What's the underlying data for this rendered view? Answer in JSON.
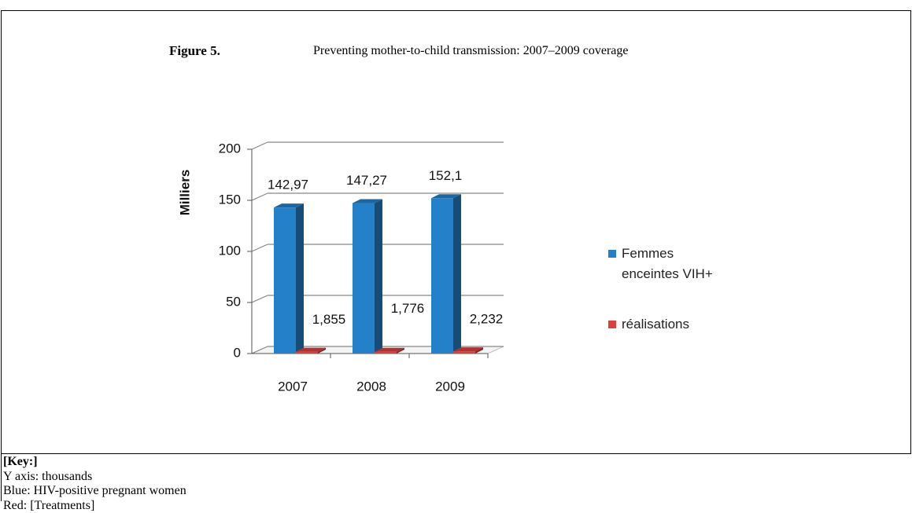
{
  "figure_label": "Figure 5.",
  "figure_caption": "Preventing mother-to-child transmission: 2007–2009 coverage",
  "chart_data": {
    "type": "bar",
    "y_label": "Milliers",
    "categories": [
      "2007",
      "2008",
      "2009"
    ],
    "series": [
      {
        "name": "Femmes enceintes VIH+",
        "color": "#2480c8",
        "values": [
          142.97,
          147.27,
          152.1
        ],
        "value_labels": [
          "142,97",
          "147,27",
          "152,1"
        ]
      },
      {
        "name": "réalisations",
        "color": "#d9413f",
        "values": [
          1.855,
          1.776,
          2.232
        ],
        "value_labels": [
          "1,855",
          "1,776",
          "2,232"
        ]
      }
    ],
    "ylim": [
      0,
      200
    ],
    "yticks": [
      0,
      50,
      100,
      150,
      200
    ],
    "grid": true,
    "legend": "right"
  },
  "key": {
    "title": "[Key:]",
    "lines": [
      "Y axis: thousands",
      "Blue: HIV-positive pregnant women",
      "Red: [Treatments]"
    ]
  }
}
